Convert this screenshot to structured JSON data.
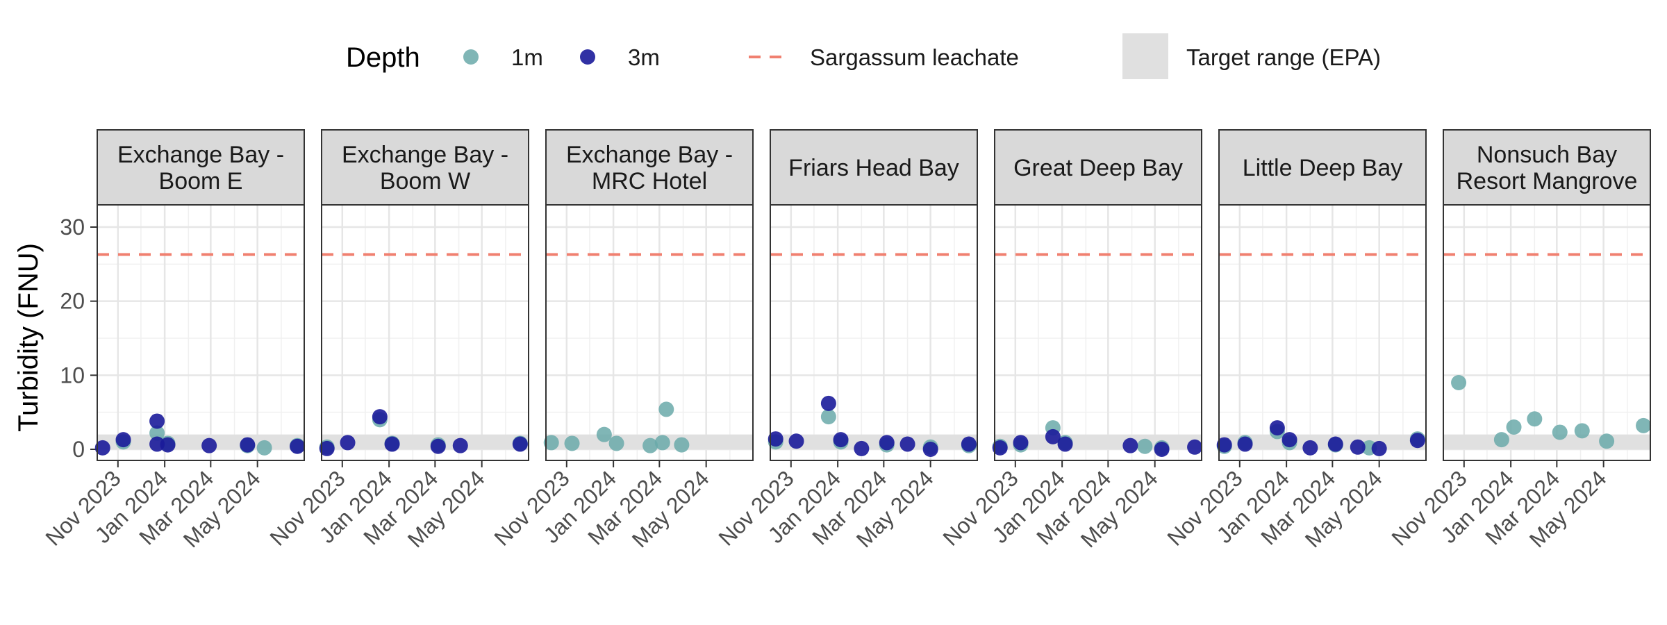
{
  "chart_data": {
    "type": "scatter",
    "ylabel": "Turbidity (FNU)",
    "ylim": [
      -1.5,
      33
    ],
    "yticks": [
      0,
      10,
      20,
      30
    ],
    "xlim": [
      "2023-10-05",
      "2024-07-01"
    ],
    "xticks": [
      {
        "date": "2023-11-01",
        "label": "Nov 2023"
      },
      {
        "date": "2024-01-01",
        "label": "Jan 2024"
      },
      {
        "date": "2024-03-01",
        "label": "Mar 2024"
      },
      {
        "date": "2024-05-01",
        "label": "May 2024"
      }
    ],
    "grid": true,
    "legend": {
      "position": "top",
      "title": "Depth",
      "series": [
        {
          "label": "1m",
          "color": "#6aa9a9"
        },
        {
          "label": "3m",
          "color": "#1b1b9a"
        }
      ],
      "reference_line": {
        "label": "Sargassum leachate",
        "color": "#f08070"
      },
      "band": {
        "label": "Target range (EPA)",
        "color": "#e0e0e0"
      }
    },
    "reference_line_value": 26.3,
    "target_range": [
      0,
      2
    ],
    "panels": [
      {
        "title_lines": [
          "Exchange Bay -",
          "Boom E"
        ],
        "series": [
          {
            "depth": "1m",
            "points": [
              [
                "2023-11-08",
                1.0
              ],
              [
                "2023-12-22",
                2.2
              ],
              [
                "2024-01-05",
                0.8
              ],
              [
                "2024-04-18",
                0.5
              ],
              [
                "2024-05-10",
                0.2
              ],
              [
                "2024-06-22",
                0.5
              ]
            ]
          },
          {
            "depth": "3m",
            "points": [
              [
                "2023-10-12",
                0.2
              ],
              [
                "2023-11-08",
                1.3
              ],
              [
                "2023-12-22",
                3.8
              ],
              [
                "2023-12-22",
                0.7
              ],
              [
                "2024-01-05",
                0.6
              ],
              [
                "2024-02-28",
                0.5
              ],
              [
                "2024-04-18",
                0.6
              ],
              [
                "2024-06-22",
                0.4
              ]
            ]
          }
        ]
      },
      {
        "title_lines": [
          "Exchange Bay -",
          "Boom W"
        ],
        "series": [
          {
            "depth": "1m",
            "points": [
              [
                "2023-10-12",
                0.3
              ],
              [
                "2023-12-20",
                4.0
              ],
              [
                "2024-01-05",
                0.8
              ],
              [
                "2024-03-05",
                0.6
              ],
              [
                "2024-06-20",
                0.8
              ]
            ]
          },
          {
            "depth": "3m",
            "points": [
              [
                "2023-10-12",
                0.1
              ],
              [
                "2023-11-08",
                0.9
              ],
              [
                "2023-12-20",
                4.4
              ],
              [
                "2024-01-05",
                0.7
              ],
              [
                "2024-03-05",
                0.4
              ],
              [
                "2024-04-03",
                0.5
              ],
              [
                "2024-06-20",
                0.7
              ]
            ]
          }
        ]
      },
      {
        "title_lines": [
          "Exchange Bay -",
          "MRC Hotel"
        ],
        "series": [
          {
            "depth": "1m",
            "points": [
              [
                "2023-10-12",
                0.9
              ],
              [
                "2023-11-08",
                0.8
              ],
              [
                "2023-12-20",
                2.0
              ],
              [
                "2024-01-05",
                0.8
              ],
              [
                "2024-02-18",
                0.5
              ],
              [
                "2024-03-05",
                0.9
              ],
              [
                "2024-03-10",
                5.4
              ],
              [
                "2024-03-30",
                0.6
              ]
            ]
          },
          {
            "depth": "3m",
            "points": []
          }
        ]
      },
      {
        "title_lines": [
          "Friars Head Bay"
        ],
        "series": [
          {
            "depth": "1m",
            "points": [
              [
                "2023-10-12",
                1.0
              ],
              [
                "2023-12-20",
                4.4
              ],
              [
                "2024-01-05",
                1.0
              ],
              [
                "2024-03-05",
                0.6
              ],
              [
                "2024-05-01",
                0.3
              ],
              [
                "2024-06-20",
                0.5
              ]
            ]
          },
          {
            "depth": "3m",
            "points": [
              [
                "2023-10-12",
                1.4
              ],
              [
                "2023-11-08",
                1.1
              ],
              [
                "2023-12-20",
                6.2
              ],
              [
                "2024-01-05",
                1.3
              ],
              [
                "2024-02-01",
                0.1
              ],
              [
                "2024-03-05",
                0.9
              ],
              [
                "2024-04-01",
                0.7
              ],
              [
                "2024-05-01",
                0.0
              ],
              [
                "2024-06-20",
                0.7
              ]
            ]
          }
        ]
      },
      {
        "title_lines": [
          "Great Deep Bay"
        ],
        "series": [
          {
            "depth": "1m",
            "points": [
              [
                "2023-10-12",
                0.4
              ],
              [
                "2023-11-08",
                0.6
              ],
              [
                "2023-12-20",
                2.9
              ],
              [
                "2024-01-05",
                0.9
              ],
              [
                "2024-04-18",
                0.4
              ],
              [
                "2024-05-10",
                0.2
              ]
            ]
          },
          {
            "depth": "3m",
            "points": [
              [
                "2023-10-12",
                0.2
              ],
              [
                "2023-11-08",
                0.9
              ],
              [
                "2023-12-20",
                1.7
              ],
              [
                "2024-01-05",
                0.7
              ],
              [
                "2024-03-30",
                0.5
              ],
              [
                "2024-05-10",
                0.0
              ],
              [
                "2024-06-22",
                0.3
              ]
            ]
          }
        ]
      },
      {
        "title_lines": [
          "Little Deep Bay"
        ],
        "series": [
          {
            "depth": "1m",
            "points": [
              [
                "2023-10-12",
                0.4
              ],
              [
                "2023-11-08",
                0.9
              ],
              [
                "2023-12-20",
                2.4
              ],
              [
                "2024-01-05",
                0.9
              ],
              [
                "2024-03-05",
                0.6
              ],
              [
                "2024-04-18",
                0.2
              ],
              [
                "2024-06-20",
                1.4
              ]
            ]
          },
          {
            "depth": "3m",
            "points": [
              [
                "2023-10-12",
                0.6
              ],
              [
                "2023-11-08",
                0.7
              ],
              [
                "2023-12-20",
                2.9
              ],
              [
                "2024-01-05",
                1.3
              ],
              [
                "2024-02-01",
                0.2
              ],
              [
                "2024-03-05",
                0.7
              ],
              [
                "2024-04-03",
                0.3
              ],
              [
                "2024-05-01",
                0.1
              ],
              [
                "2024-06-20",
                1.2
              ]
            ]
          }
        ]
      },
      {
        "title_lines": [
          "Nonsuch Bay",
          "Resort Mangrove"
        ],
        "series": [
          {
            "depth": "1m",
            "points": [
              [
                "2023-10-25",
                9.0
              ],
              [
                "2023-12-20",
                1.3
              ],
              [
                "2024-01-05",
                3.0
              ],
              [
                "2024-02-01",
                4.1
              ],
              [
                "2024-03-05",
                2.3
              ],
              [
                "2024-04-03",
                2.5
              ],
              [
                "2024-05-05",
                1.1
              ],
              [
                "2024-06-22",
                3.2
              ]
            ]
          },
          {
            "depth": "3m",
            "points": []
          }
        ]
      }
    ]
  }
}
